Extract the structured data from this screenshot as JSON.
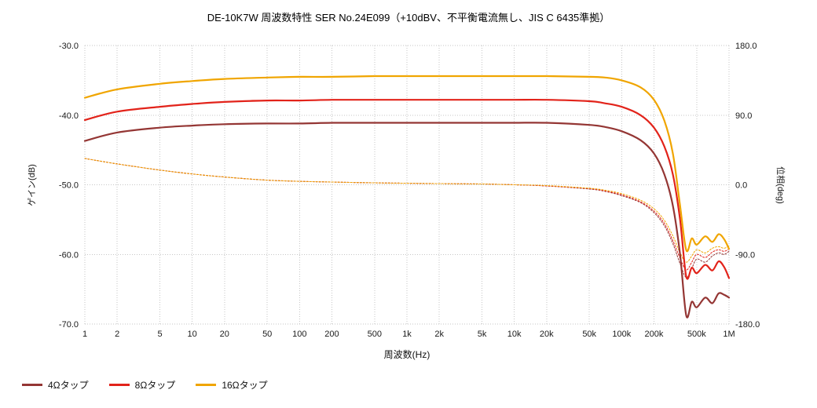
{
  "chart": {
    "title": "DE-10K7W 周波数特性 SER No.24E099（+10dBV、不平衡電流無し、JIS C 6435準拠）",
    "xlabel": "周波数(Hz)",
    "ylabel_left": "ゲイン(dB)",
    "ylabel_right": "位相(deg)"
  },
  "chart_data": {
    "type": "line",
    "x_scale": "log",
    "x_range": [
      1,
      1000000
    ],
    "grid": true,
    "legend_position": "bottom-left",
    "x_ticks": [
      1,
      2,
      5,
      10,
      20,
      50,
      100,
      200,
      500,
      1000,
      2000,
      5000,
      10000,
      20000,
      50000,
      100000,
      200000,
      500000,
      1000000
    ],
    "x_tick_labels": [
      "1",
      "2",
      "5",
      "10",
      "20",
      "50",
      "100",
      "200",
      "500",
      "1k",
      "2k",
      "5k",
      "10k",
      "20k",
      "50k",
      "100k",
      "200k",
      "500k",
      "1M"
    ],
    "y_left": {
      "label": "ゲイン(dB)",
      "range": [
        -70,
        -30
      ],
      "ticks": [
        -30,
        -40,
        -50,
        -60,
        -70
      ],
      "tick_labels": [
        "-30.0",
        "-40.0",
        "-50.0",
        "-60.0",
        "-70.0"
      ]
    },
    "y_right": {
      "label": "位相(deg)",
      "range": [
        -180,
        180
      ],
      "ticks": [
        180,
        90,
        0,
        -90,
        -180
      ],
      "tick_labels": [
        "180.0",
        "90.0",
        "0.0",
        "-90.0",
        "-180.0"
      ]
    },
    "freq": [
      1,
      2,
      5,
      10,
      20,
      50,
      100,
      200,
      500,
      1000,
      2000,
      5000,
      10000,
      20000,
      50000,
      70000,
      100000,
      150000,
      200000,
      250000,
      300000,
      350000,
      400000,
      450000,
      500000,
      600000,
      700000,
      800000,
      900000,
      1000000
    ],
    "series": [
      {
        "id": "gain-4ohm",
        "name": "4Ωタップ",
        "axis": "left",
        "style": "solid",
        "color": "#943634",
        "values": [
          -43.7,
          -42.5,
          -41.8,
          -41.5,
          -41.3,
          -41.2,
          -41.2,
          -41.1,
          -41.1,
          -41.1,
          -41.1,
          -41.1,
          -41.1,
          -41.1,
          -41.4,
          -41.7,
          -42.3,
          -43.6,
          -45.5,
          -48.5,
          -53.0,
          -60.0,
          -68.8,
          -66.8,
          -67.6,
          -66.2,
          -67.0,
          -65.6,
          -65.8,
          -66.2
        ]
      },
      {
        "id": "gain-8ohm",
        "name": "8Ωタップ",
        "axis": "left",
        "style": "solid",
        "color": "#e2231a",
        "values": [
          -40.7,
          -39.5,
          -38.8,
          -38.4,
          -38.1,
          -37.9,
          -37.9,
          -37.8,
          -37.8,
          -37.8,
          -37.8,
          -37.8,
          -37.8,
          -37.8,
          -38.0,
          -38.3,
          -38.8,
          -40.0,
          -41.8,
          -44.5,
          -48.5,
          -55.0,
          -63.2,
          -61.9,
          -62.7,
          -61.5,
          -62.3,
          -61.0,
          -61.8,
          -63.4
        ]
      },
      {
        "id": "gain-16ohm",
        "name": "16Ωタップ",
        "axis": "left",
        "style": "solid",
        "color": "#f0a500",
        "values": [
          -37.5,
          -36.3,
          -35.5,
          -35.1,
          -34.8,
          -34.6,
          -34.5,
          -34.5,
          -34.4,
          -34.4,
          -34.4,
          -34.4,
          -34.4,
          -34.4,
          -34.5,
          -34.6,
          -35.0,
          -36.0,
          -37.8,
          -40.8,
          -45.5,
          -53.0,
          -59.4,
          -57.7,
          -58.6,
          -57.4,
          -58.2,
          -57.1,
          -57.8,
          -59.2
        ]
      },
      {
        "id": "phase-4ohm",
        "name": "4Ωタップ 位相",
        "axis": "right",
        "style": "dotted",
        "color": "#943634",
        "values": [
          34,
          27,
          19,
          14,
          10,
          6,
          4.5,
          3.5,
          2.5,
          2,
          1.5,
          1,
          0,
          -1.5,
          -5.5,
          -8.5,
          -14,
          -23,
          -36,
          -53,
          -76,
          -102,
          -120,
          -108,
          -96,
          -100,
          -92,
          -88,
          -90,
          -86
        ]
      },
      {
        "id": "phase-8ohm",
        "name": "8Ωタップ 位相",
        "axis": "right",
        "style": "dotted",
        "color": "#e2231a",
        "values": [
          34,
          27,
          19,
          14,
          10,
          6,
          4.5,
          3.5,
          2.5,
          2,
          1.5,
          1,
          0,
          -1.5,
          -5,
          -8,
          -13,
          -22,
          -34,
          -50,
          -72,
          -95,
          -110,
          -100,
          -90,
          -94,
          -87,
          -84,
          -86,
          -83
        ]
      },
      {
        "id": "phase-16ohm",
        "name": "16Ωタップ 位相",
        "axis": "right",
        "style": "dotted",
        "color": "#f0a500",
        "values": [
          34,
          27,
          19,
          14,
          10,
          6,
          4.5,
          3.5,
          2.5,
          2,
          1.5,
          1,
          0,
          -1,
          -4.5,
          -7,
          -11.5,
          -20,
          -31,
          -46,
          -66,
          -88,
          -100,
          -92,
          -84,
          -88,
          -82,
          -80,
          -82,
          -79
        ]
      }
    ],
    "legend": [
      {
        "label": "4Ωタップ",
        "color": "#943634"
      },
      {
        "label": "8Ωタップ",
        "color": "#e2231a"
      },
      {
        "label": "16Ωタップ",
        "color": "#f0a500"
      }
    ]
  }
}
